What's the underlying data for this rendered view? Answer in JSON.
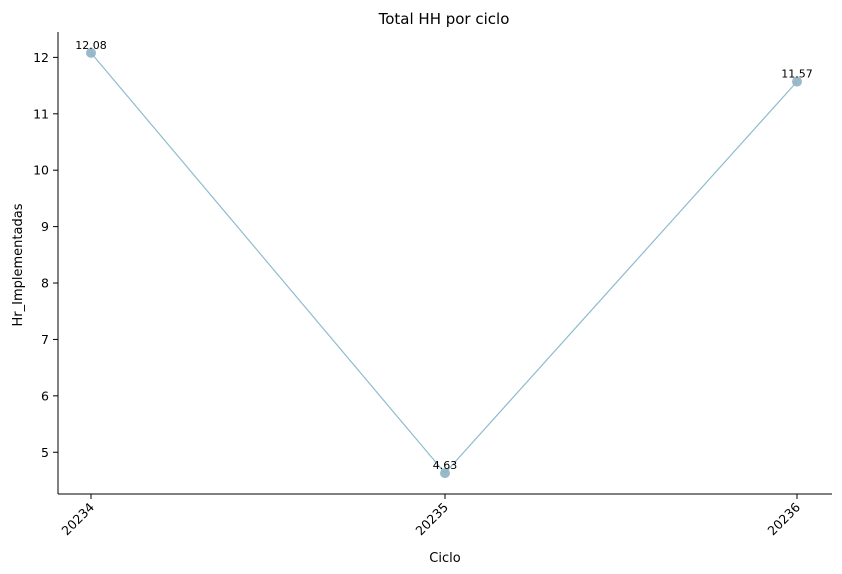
{
  "chart_data": {
    "type": "line",
    "title": "Total HH por ciclo",
    "xlabel": "Ciclo",
    "ylabel": "Hr_Implementadas",
    "categories": [
      "20234",
      "20235",
      "20236"
    ],
    "series": [
      {
        "values": [
          12.08,
          4.63,
          11.57
        ]
      }
    ],
    "data_labels": [
      "12.08",
      "4.63",
      "11.57"
    ],
    "yticks": [
      5,
      6,
      7,
      8,
      9,
      10,
      11,
      12
    ],
    "ylim": [
      4.26,
      12.45
    ],
    "grid": false,
    "line_color": "#8fbcd0",
    "marker_color": "#8fb3c4"
  }
}
